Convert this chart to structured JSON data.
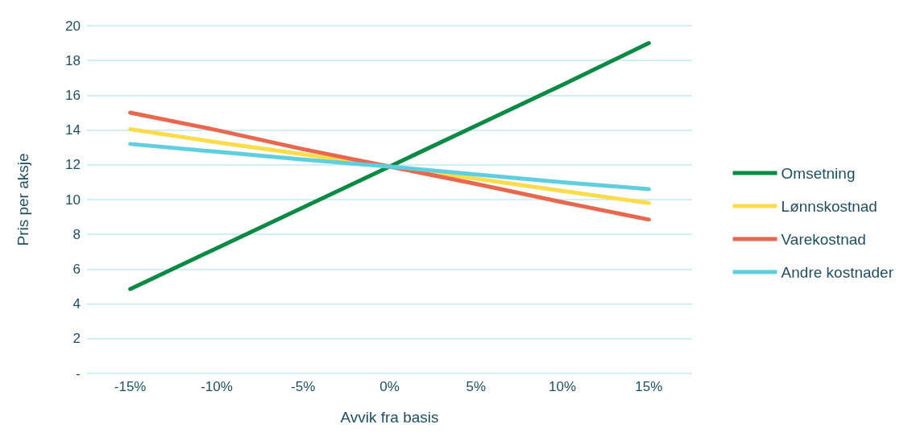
{
  "chart_data": {
    "type": "line",
    "xlabel": "Avvik fra basis",
    "ylabel": "Pris per aksje",
    "categories": [
      "-15%",
      "-10%",
      "-5%",
      "0%",
      "5%",
      "10%",
      "15%"
    ],
    "series": [
      {
        "name": "Omsetning",
        "color": "#0b8a44",
        "values": [
          4.85,
          7.2,
          9.55,
          11.9,
          14.25,
          16.6,
          19.0
        ]
      },
      {
        "name": "Lønnskostnad",
        "color": "#fbdc4a",
        "values": [
          14.05,
          13.3,
          12.6,
          11.9,
          11.2,
          10.5,
          9.8
        ]
      },
      {
        "name": "Varekostnad",
        "color": "#e8684f",
        "values": [
          15.0,
          14.0,
          12.9,
          11.9,
          10.9,
          9.85,
          8.85
        ]
      },
      {
        "name": "Andre kostnader",
        "color": "#5fcfe0",
        "values": [
          13.2,
          12.75,
          12.3,
          11.9,
          11.45,
          11.0,
          10.6
        ]
      }
    ],
    "ylim": [
      0,
      20
    ],
    "yticks": [
      {
        "value": 0,
        "label": "-"
      },
      2,
      4,
      6,
      8,
      10,
      12,
      14,
      16,
      18,
      20
    ],
    "grid": "y",
    "legend": "right",
    "marker": "none",
    "line_style": "solid"
  }
}
